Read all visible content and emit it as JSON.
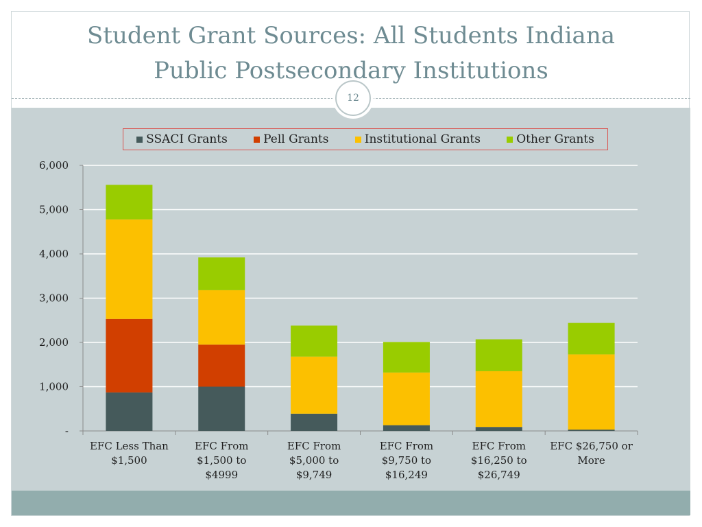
{
  "slide": {
    "title_line1": "Student Grant Sources: All Students Indiana",
    "title_line2": "Public Postsecondary Institutions",
    "page_number": "12"
  },
  "colors": {
    "title": "#6e8b92",
    "content_bg": "#c7d2d4",
    "footer_band": "#92adad",
    "legend_border": "#d9534f"
  },
  "chart_data": {
    "type": "bar",
    "stacked": true,
    "categories": [
      [
        "EFC Less Than",
        "$1,500"
      ],
      [
        "EFC From",
        "$1,500 to",
        "$4999"
      ],
      [
        "EFC From",
        "$5,000 to",
        "$9,749"
      ],
      [
        "EFC From",
        "$9,750 to",
        "$16,249"
      ],
      [
        "EFC From",
        "$16,250 to",
        "$26,749"
      ],
      [
        "EFC $26,750 or",
        "More"
      ]
    ],
    "series": [
      {
        "name": "SSACI Grants",
        "color": "#455a5b",
        "values": [
          870,
          1000,
          390,
          130,
          90,
          30
        ]
      },
      {
        "name": "Pell Grants",
        "color": "#d13f00",
        "values": [
          1660,
          950,
          0,
          0,
          0,
          0
        ]
      },
      {
        "name": "Institutional Grants",
        "color": "#fcc000",
        "values": [
          2250,
          1230,
          1290,
          1190,
          1260,
          1700
        ]
      },
      {
        "name": "Other Grants",
        "color": "#99cc00",
        "values": [
          780,
          740,
          700,
          690,
          720,
          710
        ]
      }
    ],
    "yticks": [
      "-",
      "1,000",
      "2,000",
      "3,000",
      "4,000",
      "5,000",
      "6,000"
    ],
    "ylim": [
      0,
      6000
    ],
    "ytick_step": 1000,
    "legend_position": "top",
    "grid": true,
    "title": "",
    "xlabel": "",
    "ylabel": ""
  }
}
